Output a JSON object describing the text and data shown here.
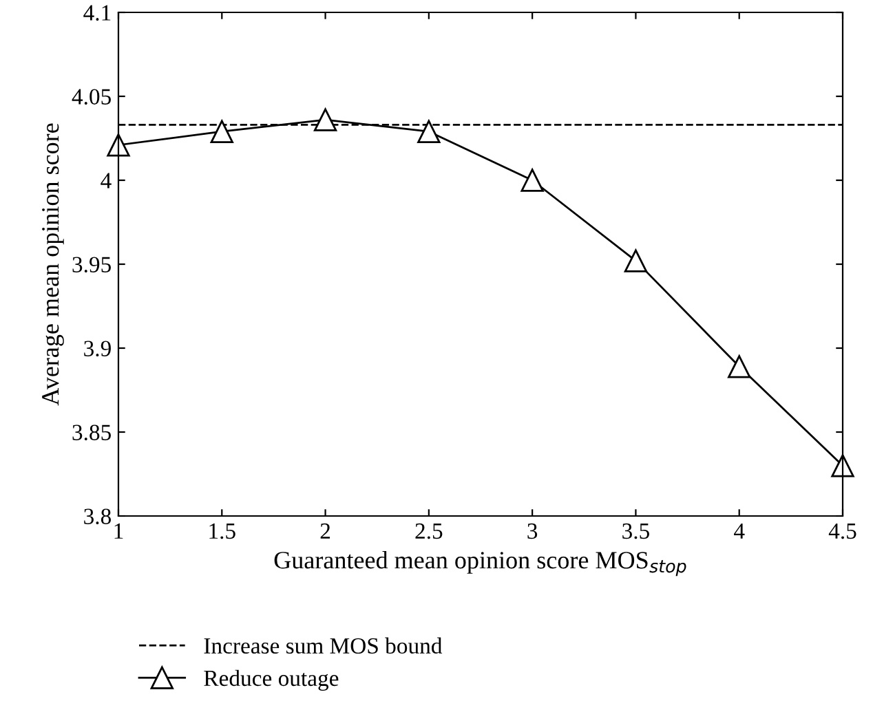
{
  "chart_data": {
    "type": "line",
    "xlabel": "Guaranteed mean opinion score MOS$_{stop}$",
    "ylabel": "Average mean opinion score",
    "x": [
      1,
      1.5,
      2,
      2.5,
      3,
      3.5,
      4,
      4.5
    ],
    "series": [
      {
        "name": "Reduce outage",
        "color": "#000000",
        "values": [
          4.021,
          4.029,
          4.036,
          4.029,
          4.0,
          3.952,
          3.889,
          3.83
        ]
      }
    ],
    "ref_lines": [
      {
        "axis": "y",
        "value": 4.033,
        "label": "Increase sum MOS bound",
        "color": "#000000",
        "line_style": "dashed"
      }
    ],
    "xlim": [
      1,
      4.5
    ],
    "xticks": [
      1,
      1.5,
      2,
      2.5,
      3,
      3.5,
      4,
      4.5
    ],
    "ylim": [
      3.8,
      4.1
    ],
    "yticks": [
      3.8,
      3.85,
      3.9,
      3.95,
      4,
      4.05,
      4.1
    ],
    "marker": "triangle",
    "line_style": "solid",
    "grid": false,
    "legend": "bottom"
  }
}
